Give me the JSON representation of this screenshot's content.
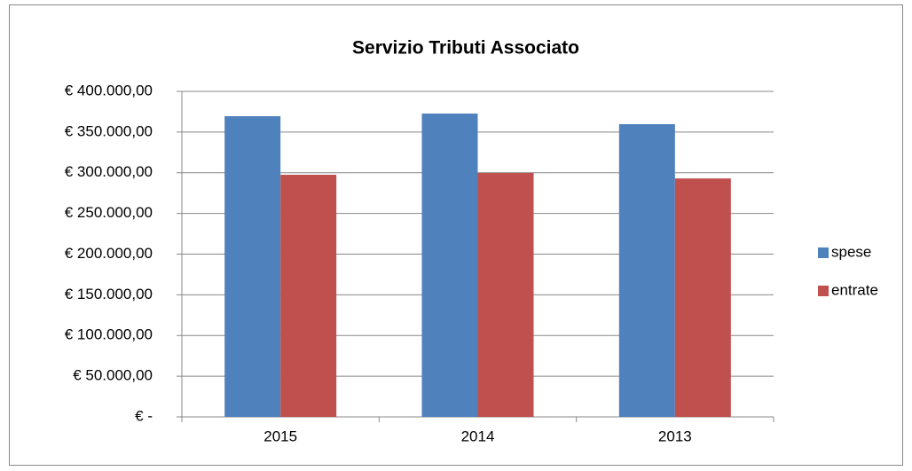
{
  "chart_data": {
    "type": "bar",
    "title": "Servizio Tributi Associato",
    "categories": [
      "2015",
      "2014",
      "2013"
    ],
    "series": [
      {
        "name": "spese",
        "color": "#4f81bd",
        "values": [
          369500,
          372700,
          359700
        ]
      },
      {
        "name": "entrate",
        "color": "#c0504d",
        "values": [
          297500,
          299700,
          293000
        ]
      }
    ],
    "ylim": [
      0,
      400000
    ],
    "yticks": [
      {
        "value": 0,
        "label": "€ -"
      },
      {
        "value": 50000,
        "label": "€ 50.000,00"
      },
      {
        "value": 100000,
        "label": "€ 100.000,00"
      },
      {
        "value": 150000,
        "label": "€ 150.000,00"
      },
      {
        "value": 200000,
        "label": "€ 200.000,00"
      },
      {
        "value": 250000,
        "label": "€ 250.000,00"
      },
      {
        "value": 300000,
        "label": "€ 300.000,00"
      },
      {
        "value": 350000,
        "label": "€ 350.000,00"
      },
      {
        "value": 400000,
        "label": "€ 400.000,00"
      }
    ],
    "grid": true,
    "legend": "right"
  }
}
